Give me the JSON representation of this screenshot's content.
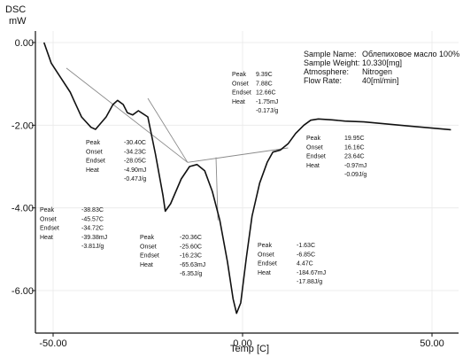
{
  "chart_data": {
    "type": "line",
    "ylabel_top": "DSC",
    "ylabel_unit": "mW",
    "xlabel": "Temp  [C]",
    "xlim": [
      -57,
      57
    ],
    "ylim": [
      -7.0,
      0.2
    ],
    "x_ticks": [
      {
        "value": -50,
        "label": "-50.00"
      },
      {
        "value": 0,
        "label": "0.00"
      },
      {
        "value": 50,
        "label": "50.00"
      }
    ],
    "y_ticks": [
      {
        "value": 0,
        "label": "0.00"
      },
      {
        "value": -2,
        "label": "-2.00"
      },
      {
        "value": -4,
        "label": "-4.00"
      },
      {
        "value": -6,
        "label": "-6.00"
      }
    ],
    "series": [
      {
        "color": "#111111",
        "points": [
          [
            -52.4,
            0.0
          ],
          [
            -50.5,
            -0.5
          ],
          [
            -48.0,
            -0.85
          ],
          [
            -45.5,
            -1.2
          ],
          [
            -44.5,
            -1.4
          ],
          [
            -42.5,
            -1.8
          ],
          [
            -40.0,
            -2.05
          ],
          [
            -38.8,
            -2.1
          ],
          [
            -36.0,
            -1.8
          ],
          [
            -34.2,
            -1.5
          ],
          [
            -33.0,
            -1.4
          ],
          [
            -31.5,
            -1.5
          ],
          [
            -30.4,
            -1.7
          ],
          [
            -29.0,
            -1.75
          ],
          [
            -27.5,
            -1.65
          ],
          [
            -25.0,
            -1.8
          ],
          [
            -23.0,
            -2.7
          ],
          [
            -21.0,
            -3.7
          ],
          [
            -20.4,
            -4.08
          ],
          [
            -19.0,
            -3.9
          ],
          [
            -16.2,
            -3.3
          ],
          [
            -14.0,
            -3.0
          ],
          [
            -12.0,
            -2.95
          ],
          [
            -10.0,
            -3.1
          ],
          [
            -8.0,
            -3.6
          ],
          [
            -6.0,
            -4.3
          ],
          [
            -4.0,
            -5.3
          ],
          [
            -2.5,
            -6.2
          ],
          [
            -1.6,
            -6.55
          ],
          [
            -0.5,
            -6.3
          ],
          [
            1.0,
            -5.2
          ],
          [
            2.5,
            -4.2
          ],
          [
            4.5,
            -3.4
          ],
          [
            6.5,
            -2.9
          ],
          [
            8.0,
            -2.65
          ],
          [
            10.0,
            -2.6
          ],
          [
            12.0,
            -2.45
          ],
          [
            14.0,
            -2.2
          ],
          [
            16.2,
            -2.0
          ],
          [
            18.0,
            -1.88
          ],
          [
            20.0,
            -1.85
          ],
          [
            23.6,
            -1.87
          ],
          [
            27.0,
            -1.9
          ],
          [
            32.0,
            -1.92
          ],
          [
            38.0,
            -1.97
          ],
          [
            44.0,
            -2.02
          ],
          [
            50.0,
            -2.07
          ],
          [
            55.0,
            -2.11
          ]
        ]
      }
    ],
    "baselines": [
      {
        "color": "#8a8a8a",
        "points": [
          [
            -46.5,
            -0.62
          ],
          [
            -14.5,
            -2.9
          ]
        ]
      },
      {
        "color": "#8a8a8a",
        "points": [
          [
            -14.5,
            -2.9
          ],
          [
            12.0,
            -2.55
          ]
        ]
      },
      {
        "color": "#8a8a8a",
        "points": [
          [
            -25.0,
            -1.35
          ],
          [
            -14.5,
            -2.9
          ]
        ]
      },
      {
        "color": "#8a8a8a",
        "points": [
          [
            -7.0,
            -2.78
          ],
          [
            -6.5,
            -4.3
          ]
        ]
      }
    ],
    "info_panel": {
      "rows": [
        {
          "key": "Sample Name:",
          "value": "Облепиховое масло 100%"
        },
        {
          "key": "Sample Weight:",
          "value": "10.330[mg]"
        },
        {
          "key": "Atmosphere:",
          "value": "Nitrogen"
        },
        {
          "key": "Flow Rate:",
          "value": "40[ml/min]"
        }
      ]
    },
    "annotations": [
      {
        "rows": [
          [
            "Peak",
            "9.39C"
          ],
          [
            "Onset",
            "7.88C"
          ],
          [
            "Endset",
            "12.66C"
          ],
          [
            "Heat",
            "-1.75mJ"
          ],
          [
            "",
            "-0.17J/g"
          ]
        ]
      },
      {
        "rows": [
          [
            "Peak",
            "-30.40C"
          ],
          [
            "Onset",
            "-34.23C"
          ],
          [
            "Endset",
            "-28.05C"
          ],
          [
            "Heat",
            "-4.90mJ"
          ],
          [
            "",
            "-0.47J/g"
          ]
        ]
      },
      {
        "rows": [
          [
            "Peak",
            "19.95C"
          ],
          [
            "Onset",
            "16.16C"
          ],
          [
            "Endset",
            "23.64C"
          ],
          [
            "Heat",
            "-0.97mJ"
          ],
          [
            "",
            "-0.09J/g"
          ]
        ]
      },
      {
        "rows": [
          [
            "Peak",
            "-38.83C"
          ],
          [
            "Onset",
            "-45.57C"
          ],
          [
            "Endset",
            "-34.72C"
          ],
          [
            "Heat",
            "-39.38mJ"
          ],
          [
            "",
            "-3.81J/g"
          ]
        ]
      },
      {
        "rows": [
          [
            "Peak",
            "-20.36C"
          ],
          [
            "Onset",
            "-25.60C"
          ],
          [
            "Endset",
            "-16.23C"
          ],
          [
            "Heat",
            "-65.63mJ"
          ],
          [
            "",
            "-6.35J/g"
          ]
        ]
      },
      {
        "rows": [
          [
            "Peak",
            "-1.63C"
          ],
          [
            "Onset",
            "-6.85C"
          ],
          [
            "Endset",
            "4.47C"
          ],
          [
            "Heat",
            "-184.67mJ"
          ],
          [
            "",
            "-17.88J/g"
          ]
        ]
      }
    ]
  }
}
